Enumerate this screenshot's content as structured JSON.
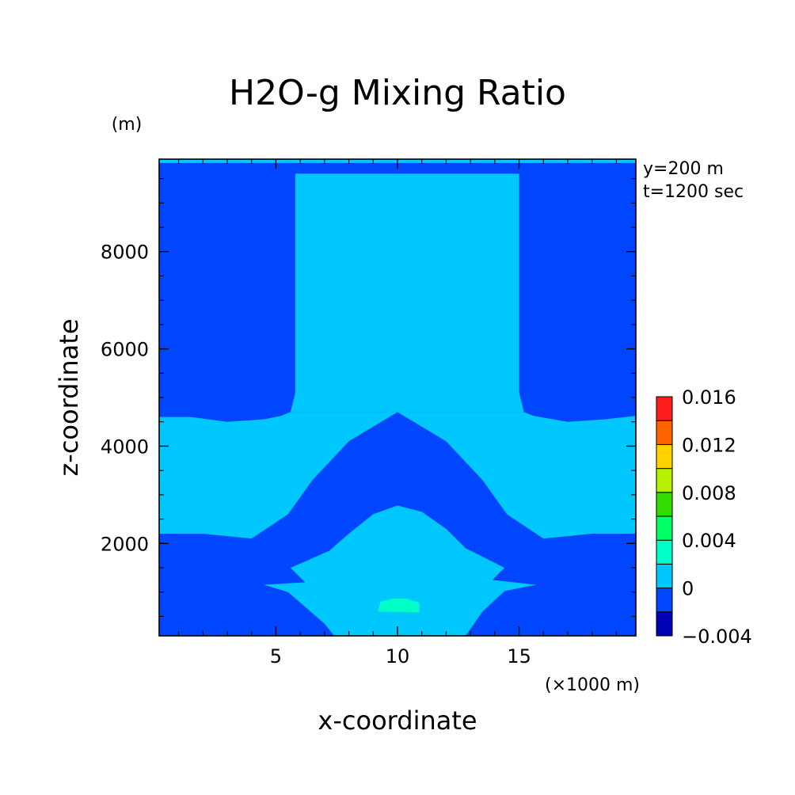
{
  "chart_data": {
    "type": "heatmap",
    "title": "H2O-g Mixing Ratio",
    "xlabel": "x-coordinate",
    "ylabel": "z-coordinate",
    "x_unit_label": "(×1000 m)",
    "y_unit_label": "(m)",
    "xlim": [
      0.2,
      19.8
    ],
    "ylim": [
      100,
      9900
    ],
    "x_ticks": [
      {
        "value": 5,
        "label": "5"
      },
      {
        "value": 10,
        "label": "10"
      },
      {
        "value": 15,
        "label": "15"
      }
    ],
    "y_ticks": [
      {
        "value": 2000,
        "label": "2000"
      },
      {
        "value": 4000,
        "label": "4000"
      },
      {
        "value": 6000,
        "label": "6000"
      },
      {
        "value": 8000,
        "label": "8000"
      }
    ],
    "annotations": [
      "y=200 m",
      "t=1200 sec"
    ],
    "colorbar": {
      "levels": [
        -0.004,
        -0.002,
        0,
        0.002,
        0.004,
        0.006,
        0.008,
        0.01,
        0.012,
        0.014,
        0.016
      ],
      "colors": [
        "#0000b4",
        "#0046ff",
        "#00c8ff",
        "#00ffc8",
        "#00ff64",
        "#32dc00",
        "#b4f000",
        "#ffd200",
        "#ff6400",
        "#ff1e1e"
      ],
      "tick_labels": [
        {
          "value": -0.004,
          "label": "−0.004"
        },
        {
          "value": 0,
          "label": "0"
        },
        {
          "value": 0.004,
          "label": "0.004"
        },
        {
          "value": 0.008,
          "label": "0.008"
        },
        {
          "value": 0.012,
          "label": "0.012"
        },
        {
          "value": 0.016,
          "label": "0.016"
        }
      ]
    },
    "field": {
      "background_level": "0.000 to -0.002 (blue)",
      "regions": [
        {
          "name": "upper-column",
          "color": "#00c8ff",
          "polygon": [
            [
              5.6,
              4700
            ],
            [
              5.8,
              5100
            ],
            [
              5.8,
              9600
            ],
            [
              15.0,
              9600
            ],
            [
              15.0,
              5100
            ],
            [
              15.2,
              4700
            ]
          ]
        },
        {
          "name": "mid-band",
          "color": "#00c8ff",
          "polygon": [
            [
              0.2,
              4600
            ],
            [
              1.5,
              4600
            ],
            [
              3.0,
              4500
            ],
            [
              4.5,
              4550
            ],
            [
              5.2,
              4620
            ],
            [
              5.6,
              4700
            ],
            [
              15.2,
              4700
            ],
            [
              15.6,
              4620
            ],
            [
              17.0,
              4500
            ],
            [
              18.5,
              4550
            ],
            [
              19.8,
              4620
            ],
            [
              19.8,
              2200
            ],
            [
              18.0,
              2200
            ],
            [
              16.0,
              2100
            ],
            [
              14.5,
              2600
            ],
            [
              13.5,
              3300
            ],
            [
              12.0,
              4100
            ],
            [
              10.0,
              4700
            ],
            [
              8.0,
              4100
            ],
            [
              6.5,
              3300
            ],
            [
              5.5,
              2600
            ],
            [
              4.0,
              2100
            ],
            [
              2.0,
              2200
            ],
            [
              0.2,
              2200
            ]
          ]
        },
        {
          "name": "lower-lens",
          "color": "#00c8ff",
          "polygon": [
            [
              7.4,
              100
            ],
            [
              7.0,
              350
            ],
            [
              5.5,
              1000
            ],
            [
              4.5,
              1150
            ],
            [
              6.2,
              1200
            ],
            [
              5.6,
              1500
            ],
            [
              6.3,
              1650
            ],
            [
              7.2,
              1850
            ],
            [
              8.0,
              2200
            ],
            [
              9.0,
              2600
            ],
            [
              10.0,
              2780
            ],
            [
              11.0,
              2650
            ],
            [
              12.0,
              2300
            ],
            [
              12.8,
              1900
            ],
            [
              13.8,
              1650
            ],
            [
              14.4,
              1500
            ],
            [
              13.9,
              1250
            ],
            [
              15.7,
              1150
            ],
            [
              14.4,
              1020
            ],
            [
              13.5,
              600
            ],
            [
              12.8,
              100
            ]
          ]
        },
        {
          "name": "core",
          "color": "#00ffc8",
          "polygon": [
            [
              9.2,
              600
            ],
            [
              9.3,
              800
            ],
            [
              9.8,
              870
            ],
            [
              10.4,
              860
            ],
            [
              10.9,
              780
            ],
            [
              10.9,
              580
            ]
          ]
        },
        {
          "name": "top-strip",
          "color": "#00c8ff",
          "polygon": [
            [
              0.2,
              9820
            ],
            [
              19.8,
              9820
            ],
            [
              19.8,
              9900
            ],
            [
              0.2,
              9900
            ]
          ]
        }
      ]
    }
  }
}
